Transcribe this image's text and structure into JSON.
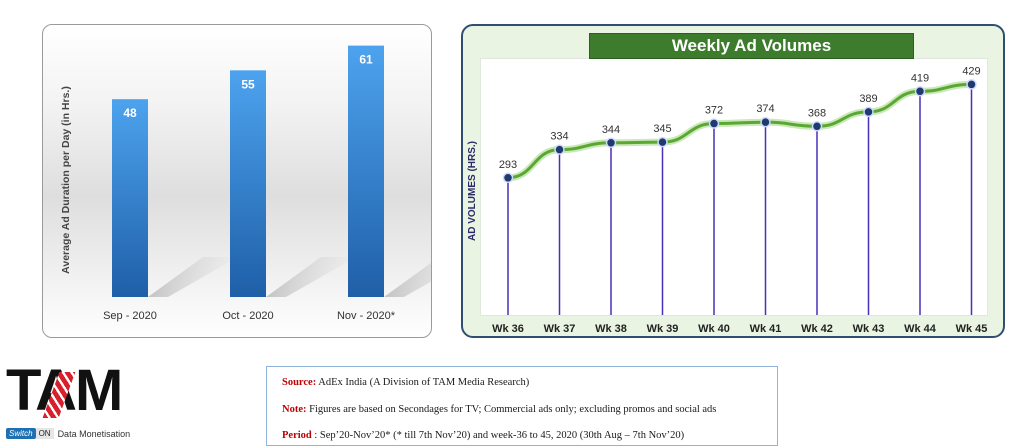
{
  "chart_data": [
    {
      "type": "bar",
      "categories": [
        "Sep - 2020",
        "Oct - 2020",
        "Nov - 2020*"
      ],
      "values": [
        48,
        55,
        61
      ],
      "title": "",
      "xlabel": "",
      "ylabel": "Average Ad Duration per Day (in Hrs.)",
      "ylim": [
        0,
        66
      ],
      "grid": false,
      "colors": {
        "bar_top": "#4da3ee",
        "bar_bottom": "#1f5fa8",
        "label": "#ffffff",
        "axis_text": "#333333"
      }
    },
    {
      "type": "line",
      "categories": [
        "Wk 36",
        "Wk 37",
        "Wk 38",
        "Wk 39",
        "Wk 40",
        "Wk 41",
        "Wk 42",
        "Wk 43",
        "Wk 44",
        "Wk 45"
      ],
      "values": [
        293,
        334,
        344,
        345,
        372,
        374,
        368,
        389,
        419,
        429
      ],
      "title": "Weekly Ad Volumes",
      "xlabel": "",
      "ylabel": "AD VOLUMES (HRS.)",
      "ylim": [
        150,
        450
      ],
      "grid": false,
      "colors": {
        "line": "#5aa832",
        "marker_fill": "#1e3a6e",
        "drop_line": "#4a2fb8",
        "title_bg": "#3d7c2c"
      }
    }
  ],
  "logo": {
    "text": "TAM",
    "switch_label": "Switch",
    "on_label": "ON",
    "tagline": "Data Monetisation"
  },
  "footnotes": {
    "source_label": "Source:",
    "source_text": " AdEx India (A Division of TAM Media Research)",
    "note_label": "Note:",
    "note_text": " Figures are based on Secondages for TV; Commercial ads only; excluding promos and social ads",
    "period_label": "Period",
    "period_text": " : Sep’20-Nov’20* (* till 7th Nov’20) and week-36 to 45, 2020 (30th Aug – 7th Nov’20)"
  }
}
